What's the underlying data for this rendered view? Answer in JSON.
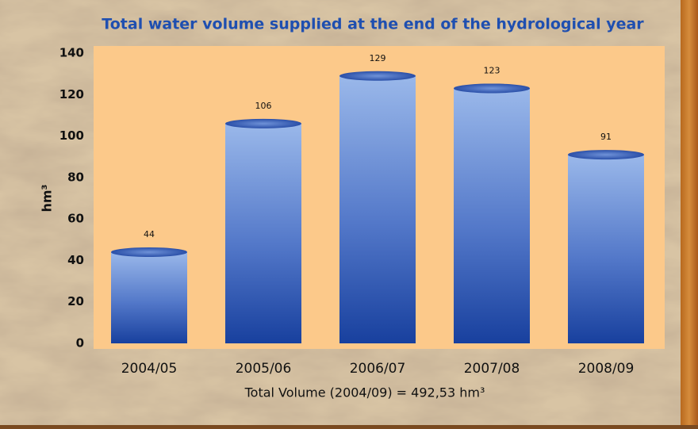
{
  "chart_data": {
    "type": "bar",
    "title": "Total water volume supplied at the end of the hydrological year",
    "y_label": "hm³",
    "footer": "Total Volume (2004/09) = 492,53 hm³",
    "categories": [
      "2004/05",
      "2005/06",
      "2006/07",
      "2007/08",
      "2008/09"
    ],
    "values": [
      44,
      106,
      129,
      123,
      91
    ],
    "color": "#2a56b8",
    "ylim": [
      0,
      140
    ],
    "yticks": [
      0,
      20,
      40,
      60,
      80,
      100,
      120,
      140
    ],
    "grid": false
  }
}
